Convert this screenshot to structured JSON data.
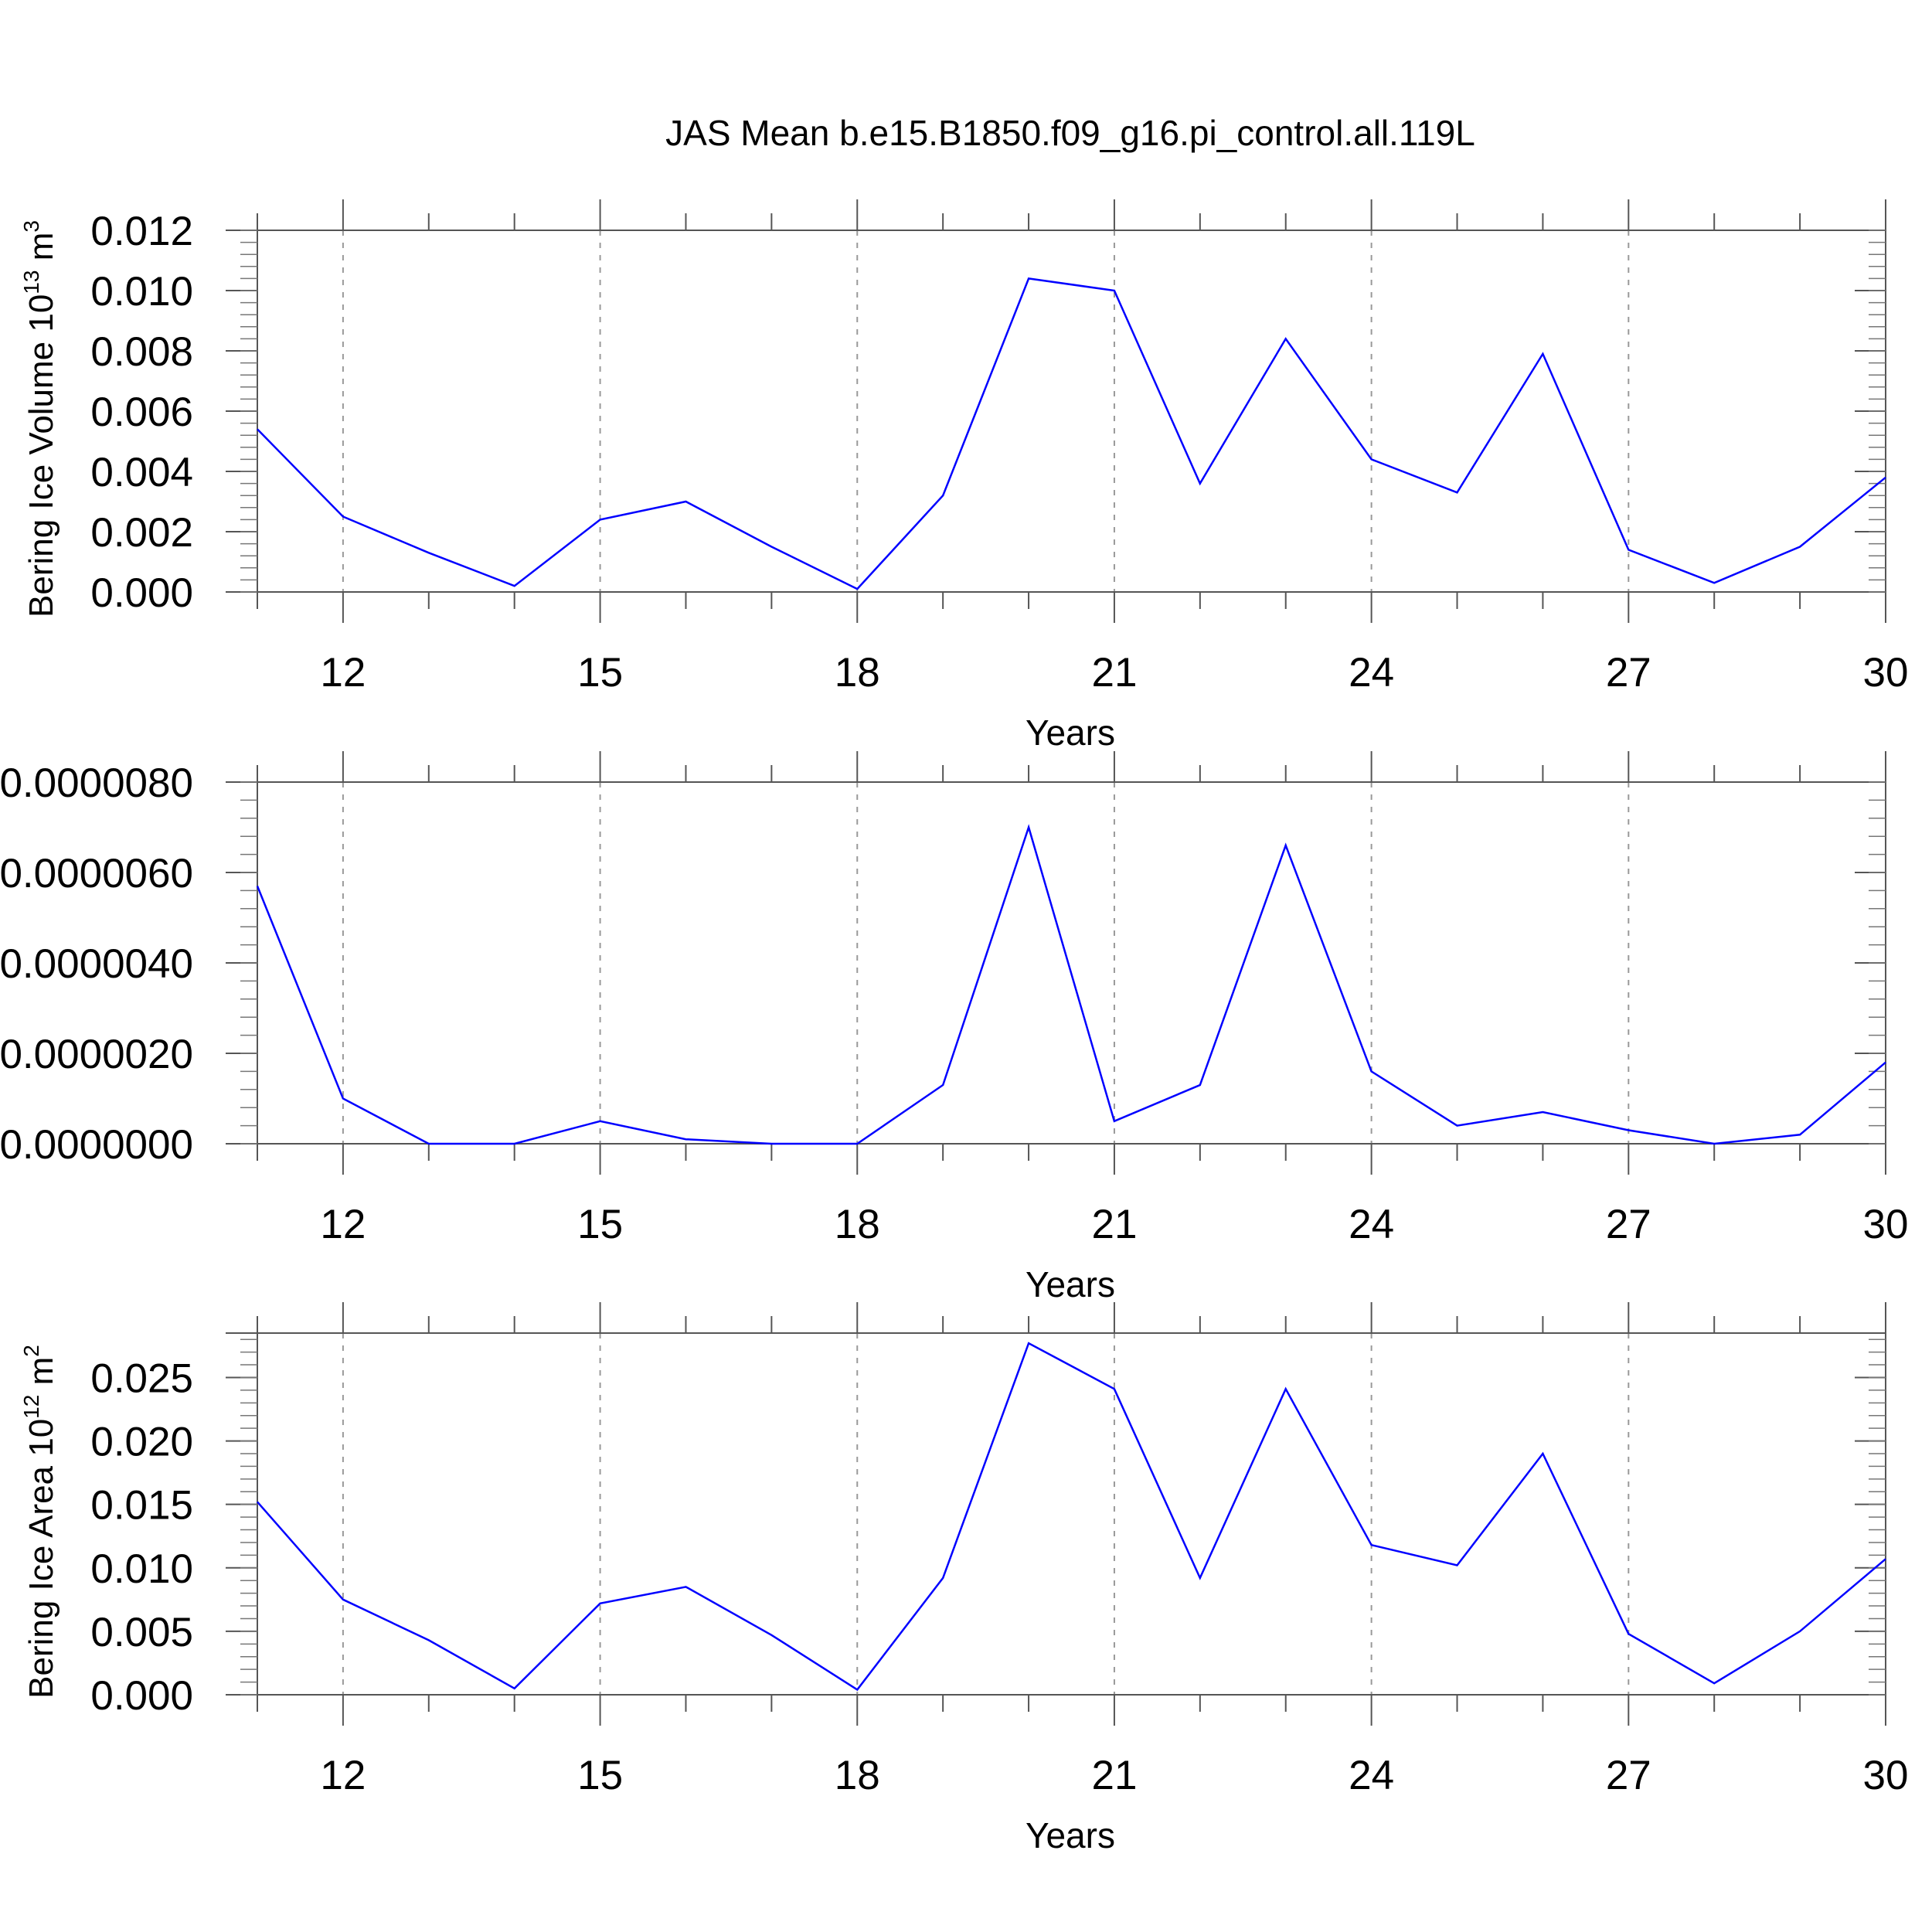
{
  "title": "JAS Mean b.e15.B1850.f09_g16.pi_control.all.119L",
  "chart_data": [
    {
      "type": "line",
      "xlabel": "Years",
      "ylabel": {
        "prefix": "Bering Ice Volume 10",
        "exponent": "13",
        "suffix": " m",
        "unit_exponent": "3"
      },
      "xlim": [
        11,
        30
      ],
      "ylim": [
        0,
        0.012
      ],
      "x_ticks": [
        12,
        15,
        18,
        21,
        24,
        27,
        30
      ],
      "y_ticks": [
        "0.000",
        "0.002",
        "0.004",
        "0.006",
        "0.008",
        "0.010",
        "0.012"
      ],
      "x": [
        11,
        12,
        13,
        14,
        15,
        16,
        17,
        18,
        19,
        20,
        21,
        22,
        23,
        24,
        25,
        26,
        27,
        28,
        29,
        30
      ],
      "values": [
        0.0054,
        0.0025,
        0.0013,
        0.0002,
        0.0024,
        0.003,
        0.0015,
        0.0001,
        0.0032,
        0.0104,
        0.01,
        0.0036,
        0.0084,
        0.0044,
        0.0033,
        0.0079,
        0.0014,
        0.0003,
        0.0015,
        0.0038
      ],
      "line_color": "#0000ff",
      "grid": "vertical dashed at major x ticks"
    },
    {
      "type": "line",
      "xlabel": "Years",
      "ylabel": {
        "prefix": "",
        "exponent": "",
        "suffix": "",
        "unit_exponent": ""
      },
      "xlim": [
        11,
        30
      ],
      "ylim": [
        0,
        8e-06
      ],
      "x_ticks": [
        12,
        15,
        18,
        21,
        24,
        27,
        30
      ],
      "y_ticks": [
        "0.0000000",
        "0.0000020",
        "0.0000040",
        "0.0000060",
        "0.0000080"
      ],
      "x": [
        11,
        12,
        13,
        14,
        15,
        16,
        17,
        18,
        19,
        20,
        21,
        22,
        23,
        24,
        25,
        26,
        27,
        28,
        29,
        30
      ],
      "values": [
        5.7e-06,
        1e-06,
        0.0,
        0.0,
        5e-07,
        1e-07,
        0.0,
        0.0,
        1.3e-06,
        7e-06,
        5e-07,
        1.3e-06,
        6.6e-06,
        1.6e-06,
        4e-07,
        7e-07,
        3e-07,
        0.0,
        2e-07,
        1.8e-06
      ],
      "line_color": "#0000ff",
      "grid": "vertical dashed at major x ticks"
    },
    {
      "type": "line",
      "xlabel": "Years",
      "ylabel": {
        "prefix": "Bering Ice Area 10",
        "exponent": "12",
        "suffix": " m",
        "unit_exponent": "2"
      },
      "xlim": [
        11,
        30
      ],
      "ylim": [
        0,
        0.0285
      ],
      "x_ticks": [
        12,
        15,
        18,
        21,
        24,
        27,
        30
      ],
      "y_ticks": [
        "0.000",
        "0.005",
        "0.010",
        "0.015",
        "0.020",
        "0.025"
      ],
      "x": [
        11,
        12,
        13,
        14,
        15,
        16,
        17,
        18,
        19,
        20,
        21,
        22,
        23,
        24,
        25,
        26,
        27,
        28,
        29,
        30
      ],
      "values": [
        0.0152,
        0.0075,
        0.0043,
        0.0005,
        0.0072,
        0.0085,
        0.0047,
        0.0004,
        0.0092,
        0.0277,
        0.0241,
        0.0092,
        0.0241,
        0.0118,
        0.0102,
        0.019,
        0.0048,
        0.0009,
        0.005,
        0.0107
      ],
      "line_color": "#0000ff",
      "grid": "vertical dashed at major x ticks"
    }
  ]
}
